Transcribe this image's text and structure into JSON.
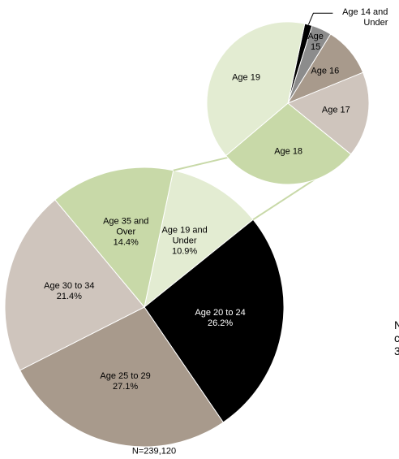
{
  "chart_data": {
    "type": "pie-of-pie",
    "categories": [
      "Age 19 and Under",
      "Age 20 to 24",
      "Age 25 to 29",
      "Age 30 to 34",
      "Age 35 and Over"
    ],
    "values": [
      10.9,
      26.2,
      27.1,
      21.4,
      14.4
    ],
    "value_labels": [
      "10.9%",
      "26.2%",
      "27.1%",
      "21.4%",
      "14.4%"
    ],
    "colors": [
      "#e3ecd2",
      "#000000",
      "#a89a8c",
      "#cfc5bd",
      "#c8d9a8"
    ],
    "sub_categories": [
      "Age 14 and Under",
      "Age 15",
      "Age 16",
      "Age 17",
      "Age 18",
      "Age 19"
    ],
    "sub_values": [
      1.5,
      4,
      10,
      17,
      28,
      39.5
    ],
    "sub_colors": [
      "#000000",
      "#8c8c8c",
      "#a89a8c",
      "#cfc5bd",
      "#c8d9a8",
      "#e3ecd2"
    ],
    "note": "N=239,120",
    "cropped_edge_text": [
      "N",
      "c",
      "3"
    ]
  }
}
